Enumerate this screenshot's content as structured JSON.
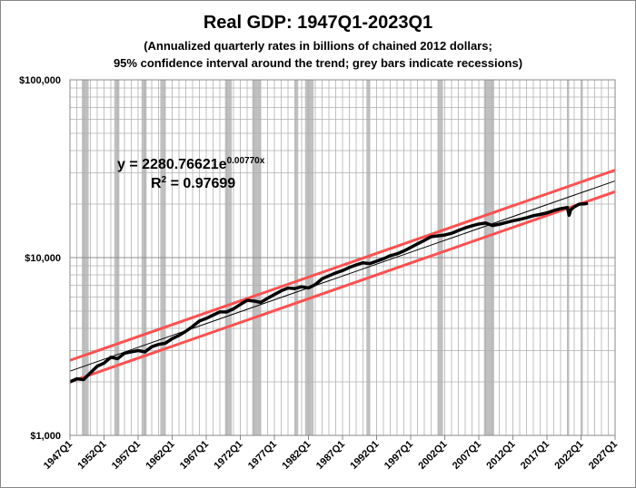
{
  "chart_data": {
    "type": "line",
    "title": "Real GDP: 1947Q1-2023Q1",
    "subtitle_lines": [
      "(Annualized quarterly rates in billions of chained 2012 dollars;",
      "95% confidence interval around the trend; grey bars indicate recessions)"
    ],
    "y_scale": "log",
    "ylim": [
      1000,
      100000
    ],
    "y_ticks": [
      {
        "v": 1000,
        "label": "$1,000"
      },
      {
        "v": 10000,
        "label": "$10,000"
      },
      {
        "v": 100000,
        "label": "$100,000"
      }
    ],
    "xlim": [
      1947,
      2027
    ],
    "x_ticks": [
      "1947Q1",
      "1952Q1",
      "1957Q1",
      "1962Q1",
      "1967Q1",
      "1972Q1",
      "1977Q1",
      "1982Q1",
      "1987Q1",
      "1992Q1",
      "1997Q1",
      "2002Q1",
      "2007Q1",
      "2012Q1",
      "2017Q1",
      "2022Q1",
      "2027Q1"
    ],
    "grid": true,
    "equation": {
      "prefix": "y = 2280.76621e",
      "exponent": "0.00770x",
      "r2_prefix": "R",
      "r2_sup": "2",
      "r2_value": " = 0.97699"
    },
    "trend": {
      "a": 2280.76621,
      "b": 0.0077,
      "x_unit": "quarter index from 1947Q1 = 1",
      "ci_factor": 1.15
    },
    "recessions": [
      [
        1948.75,
        1949.75
      ],
      [
        1953.5,
        1954.25
      ],
      [
        1957.5,
        1958.25
      ],
      [
        1960.25,
        1961.0
      ],
      [
        1969.75,
        1970.75
      ],
      [
        1973.75,
        1975.0
      ],
      [
        1980.0,
        1980.5
      ],
      [
        1981.5,
        1982.75
      ],
      [
        1990.5,
        1991.0
      ],
      [
        2001.0,
        2001.75
      ],
      [
        2007.75,
        2009.25
      ],
      [
        2020.0,
        2020.25
      ],
      [
        2022.0,
        2022.25
      ]
    ],
    "series": [
      {
        "name": "Real GDP",
        "color": "#000000",
        "points": [
          [
            1947,
            2000
          ],
          [
            1948,
            2080
          ],
          [
            1949,
            2060
          ],
          [
            1950,
            2250
          ],
          [
            1951,
            2450
          ],
          [
            1952,
            2550
          ],
          [
            1953,
            2750
          ],
          [
            1954,
            2700
          ],
          [
            1955,
            2900
          ],
          [
            1956,
            2950
          ],
          [
            1957,
            3000
          ],
          [
            1958,
            2950
          ],
          [
            1959,
            3150
          ],
          [
            1960,
            3250
          ],
          [
            1961,
            3300
          ],
          [
            1962,
            3500
          ],
          [
            1963,
            3650
          ],
          [
            1964,
            3850
          ],
          [
            1965,
            4100
          ],
          [
            1966,
            4400
          ],
          [
            1967,
            4550
          ],
          [
            1968,
            4750
          ],
          [
            1969,
            4950
          ],
          [
            1970,
            4950
          ],
          [
            1971,
            5150
          ],
          [
            1972,
            5450
          ],
          [
            1973,
            5750
          ],
          [
            1974,
            5700
          ],
          [
            1975,
            5600
          ],
          [
            1976,
            5900
          ],
          [
            1977,
            6200
          ],
          [
            1978,
            6500
          ],
          [
            1979,
            6750
          ],
          [
            1980,
            6700
          ],
          [
            1981,
            6850
          ],
          [
            1982,
            6750
          ],
          [
            1983,
            7050
          ],
          [
            1984,
            7600
          ],
          [
            1985,
            7900
          ],
          [
            1986,
            8200
          ],
          [
            1987,
            8450
          ],
          [
            1988,
            8800
          ],
          [
            1989,
            9100
          ],
          [
            1990,
            9350
          ],
          [
            1991,
            9250
          ],
          [
            1992,
            9550
          ],
          [
            1993,
            9850
          ],
          [
            1994,
            10250
          ],
          [
            1995,
            10500
          ],
          [
            1996,
            10900
          ],
          [
            1997,
            11400
          ],
          [
            1998,
            11950
          ],
          [
            1999,
            12500
          ],
          [
            2000,
            13100
          ],
          [
            2001,
            13250
          ],
          [
            2002,
            13400
          ],
          [
            2003,
            13700
          ],
          [
            2004,
            14200
          ],
          [
            2005,
            14700
          ],
          [
            2006,
            15100
          ],
          [
            2007,
            15450
          ],
          [
            2008,
            15650
          ],
          [
            2009,
            15150
          ],
          [
            2010,
            15400
          ],
          [
            2011,
            15750
          ],
          [
            2012,
            16100
          ],
          [
            2013,
            16400
          ],
          [
            2014,
            16750
          ],
          [
            2015,
            17200
          ],
          [
            2016,
            17500
          ],
          [
            2017,
            17850
          ],
          [
            2018,
            18400
          ],
          [
            2019,
            18850
          ],
          [
            2020,
            19150
          ],
          [
            2020.25,
            17300
          ],
          [
            2020.5,
            18600
          ],
          [
            2021,
            19300
          ],
          [
            2021.75,
            20000
          ],
          [
            2022.5,
            20050
          ],
          [
            2023,
            20250
          ]
        ]
      }
    ]
  }
}
